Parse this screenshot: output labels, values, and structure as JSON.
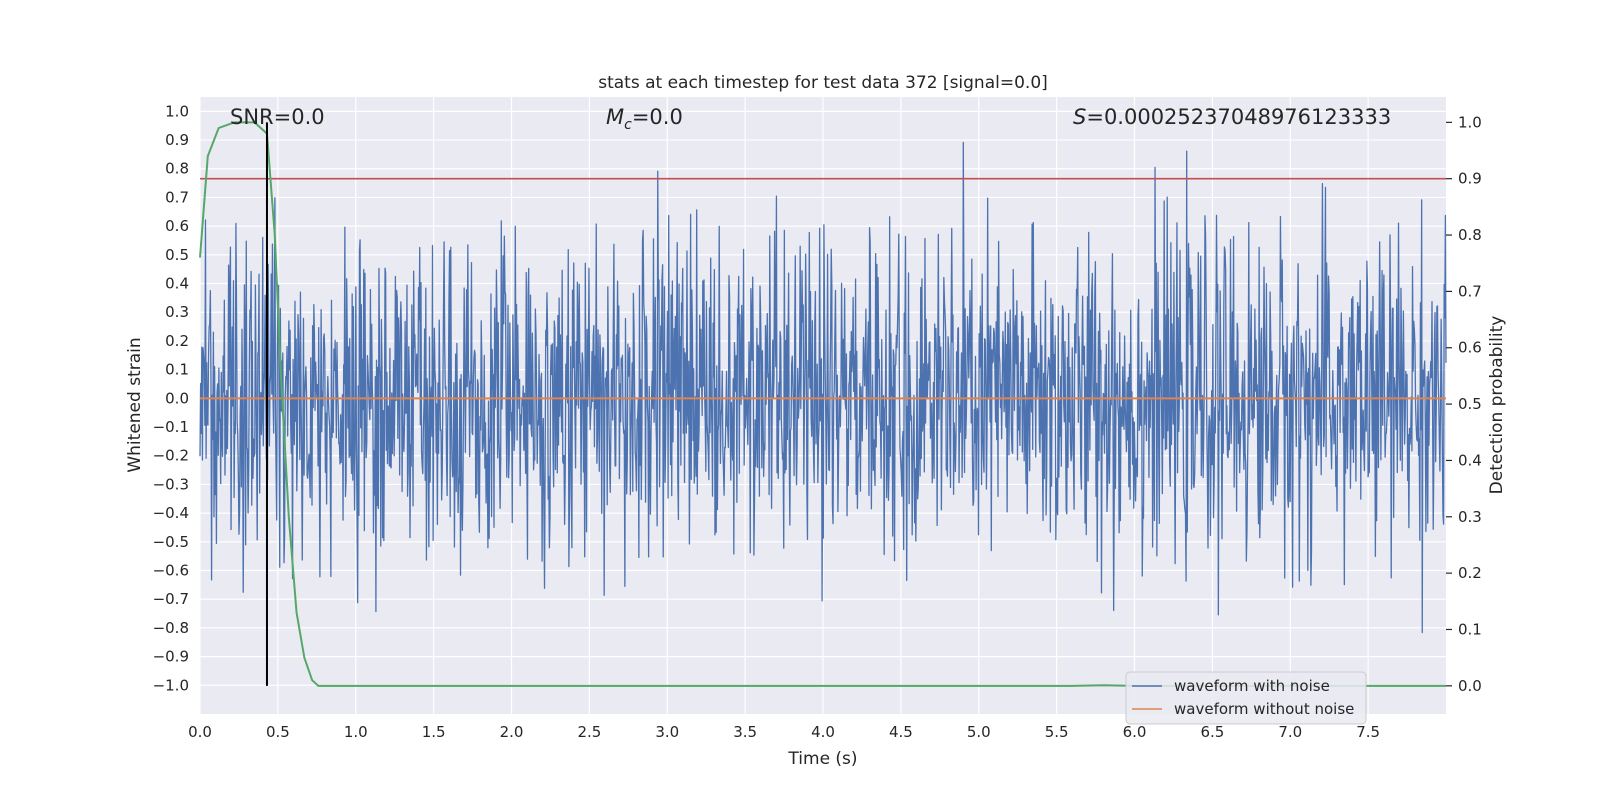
{
  "chart_data": {
    "type": "line",
    "title": "stats at each timestep for test data 372 [signal=0.0]",
    "xlabel": "Time (s)",
    "ylabel": "Whitened strain",
    "y2label": "Detection probability",
    "xlim": [
      0.0,
      8.0
    ],
    "ylim": [
      -1.1,
      1.05
    ],
    "y2lim": [
      -0.05,
      1.045
    ],
    "xticks": [
      "0.0",
      "0.5",
      "1.0",
      "1.5",
      "2.0",
      "2.5",
      "3.0",
      "3.5",
      "4.0",
      "4.5",
      "5.0",
      "5.5",
      "6.0",
      "6.5",
      "7.0",
      "7.5"
    ],
    "yticks": [
      "1.0",
      "0.9",
      "0.8",
      "0.7",
      "0.6",
      "0.5",
      "0.4",
      "0.3",
      "0.2",
      "0.1",
      "0.0",
      "−0.1",
      "−0.2",
      "−0.3",
      "−0.4",
      "−0.5",
      "−0.6",
      "−0.7",
      "−0.8",
      "−0.9",
      "−1.0"
    ],
    "y2ticks": [
      "1.0",
      "0.9",
      "0.8",
      "0.7",
      "0.6",
      "0.5",
      "0.4",
      "0.3",
      "0.2",
      "0.1",
      "0.0"
    ],
    "annotations": {
      "snr": "SNR=0.0",
      "mc_symbol": "M",
      "mc_sub": "c",
      "mc_value": "=0.0",
      "s_symbol": "S",
      "s_value": "=0.00025237048976123333"
    },
    "threshold": {
      "value": 0.9,
      "axis": "right",
      "color": "#c44e52"
    },
    "marker_time": 0.43,
    "noise_amplitude_range": [
      -1.0,
      0.97
    ],
    "series": [
      {
        "name": "waveform with noise",
        "color": "#4c72b0",
        "kind": "noise",
        "n_samples": 2048
      },
      {
        "name": "waveform without noise",
        "color": "#dd8452",
        "kind": "flat",
        "value": 0.0
      }
    ],
    "detection_probability": {
      "color": "#55a868",
      "x": [
        0.0,
        0.05,
        0.12,
        0.22,
        0.35,
        0.43,
        0.48,
        0.52,
        0.57,
        0.62,
        0.67,
        0.72,
        0.76,
        0.8,
        1.0,
        2.0,
        3.0,
        4.0,
        5.0,
        5.6,
        5.8,
        6.0,
        7.0,
        8.0
      ],
      "y": [
        0.76,
        0.94,
        0.99,
        1.0,
        1.0,
        0.98,
        0.8,
        0.55,
        0.3,
        0.13,
        0.05,
        0.01,
        0.0,
        0.0,
        0.0,
        0.0,
        0.0,
        0.0,
        0.0,
        0.0,
        0.001,
        0.0,
        0.0,
        0.0
      ]
    },
    "grid": true,
    "legend_position": "lower-right"
  }
}
